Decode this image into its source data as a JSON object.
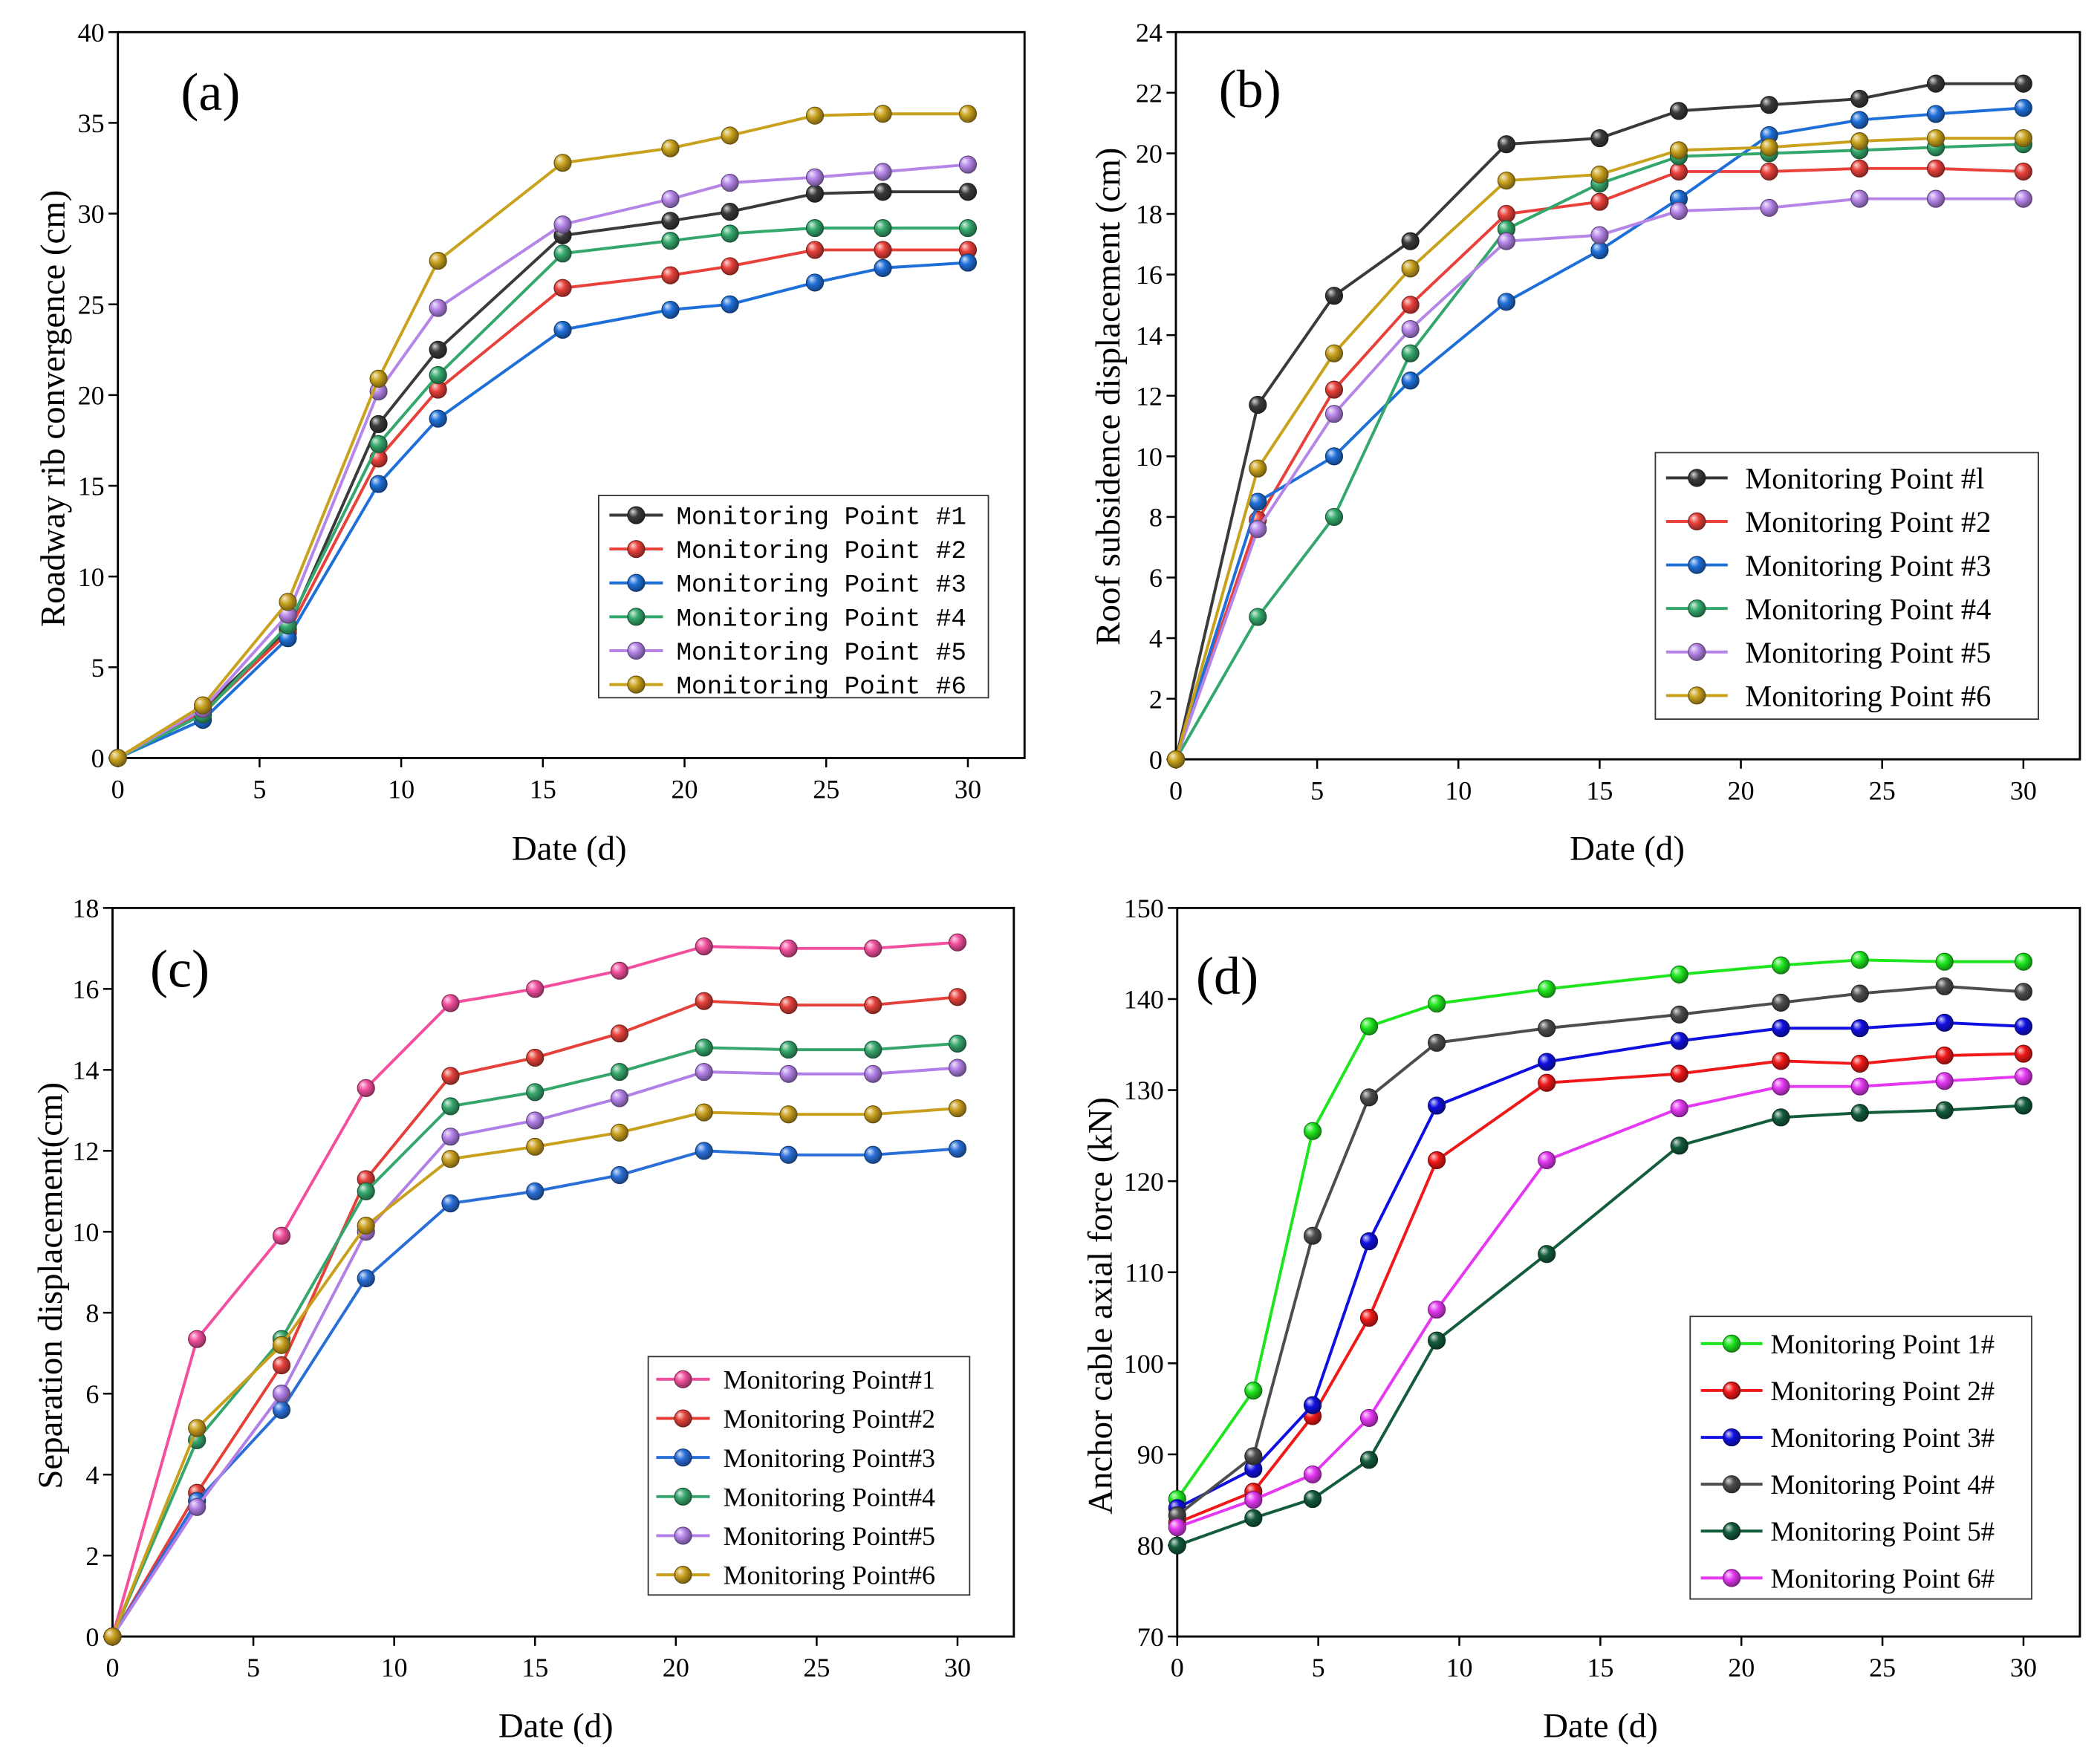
{
  "chart_data": [
    {
      "type": "line",
      "title": "(a)",
      "xlabel": "Date (d)",
      "ylabel": "Roadway rib convergence (cm)",
      "xlim": [
        0,
        32
      ],
      "ylim": [
        0,
        40
      ],
      "x_ticks": [
        0,
        5,
        10,
        15,
        20,
        25,
        30
      ],
      "y_ticks": [
        0,
        5,
        10,
        15,
        20,
        25,
        30,
        35,
        40
      ],
      "grid": false,
      "legend": "center-right",
      "x": [
        0,
        3,
        6,
        9.2,
        11.3,
        15.7,
        19.5,
        21.6,
        24.6,
        27,
        30
      ],
      "series": [
        {
          "name": "Monitoring Point #1",
          "color": "#3a3a3a",
          "values": [
            0,
            2.7,
            7.1,
            18.4,
            22.5,
            28.8,
            29.6,
            30.1,
            31.1,
            31.2,
            31.2
          ]
        },
        {
          "name": "Monitoring Point #2",
          "color": "#e8403a",
          "values": [
            0,
            2.5,
            6.9,
            16.5,
            20.3,
            25.9,
            26.6,
            27.1,
            28.0,
            28.0,
            28.0
          ]
        },
        {
          "name": "Monitoring Point #3",
          "color": "#1f6fd9",
          "values": [
            0,
            2.1,
            6.6,
            15.1,
            18.7,
            23.6,
            24.7,
            25.0,
            26.2,
            27.0,
            27.3
          ]
        },
        {
          "name": "Monitoring Point #4",
          "color": "#34a86c",
          "values": [
            0,
            2.4,
            7.3,
            17.3,
            21.1,
            27.8,
            28.5,
            28.9,
            29.2,
            29.2,
            29.2
          ]
        },
        {
          "name": "Monitoring Point #5",
          "color": "#b585e8",
          "values": [
            0,
            2.7,
            7.9,
            20.2,
            24.8,
            29.4,
            30.8,
            31.7,
            32.0,
            32.3,
            32.7
          ]
        },
        {
          "name": "Monitoring Point #6",
          "color": "#c9a21d",
          "values": [
            0,
            2.9,
            8.6,
            20.9,
            27.4,
            32.8,
            33.6,
            34.3,
            35.4,
            35.5,
            35.5
          ]
        }
      ]
    },
    {
      "type": "line",
      "title": "(b)",
      "xlabel": "Date (d)",
      "ylabel": "Roof subsidence displacement (cm)",
      "xlim": [
        0,
        32
      ],
      "ylim": [
        0,
        24
      ],
      "x_ticks": [
        0,
        5,
        10,
        15,
        20,
        25,
        30
      ],
      "y_ticks": [
        0,
        2,
        4,
        6,
        8,
        10,
        12,
        14,
        16,
        18,
        20,
        22,
        24
      ],
      "grid": false,
      "legend": "lower-right",
      "x": [
        0,
        2.9,
        5.6,
        8.3,
        11.7,
        15,
        17.8,
        21,
        24.2,
        26.9,
        30
      ],
      "series": [
        {
          "name": "Monitoring Point #l",
          "color": "#3a3a3a",
          "values": [
            0,
            11.7,
            15.3,
            17.1,
            20.3,
            20.5,
            21.4,
            21.6,
            21.8,
            22.3,
            22.3
          ]
        },
        {
          "name": "Monitoring Point #2",
          "color": "#e8403a",
          "values": [
            0,
            7.9,
            12.2,
            15.0,
            18.0,
            18.4,
            19.4,
            19.4,
            19.5,
            19.5,
            19.4
          ]
        },
        {
          "name": "Monitoring Point #3",
          "color": "#1f6fd9",
          "values": [
            0,
            8.5,
            10.0,
            12.5,
            15.1,
            16.8,
            18.5,
            20.6,
            21.1,
            21.3,
            21.5
          ]
        },
        {
          "name": "Monitoring Point #4",
          "color": "#34a86c",
          "values": [
            0,
            4.7,
            8.0,
            13.4,
            17.5,
            19.0,
            19.9,
            20.0,
            20.1,
            20.2,
            20.3
          ]
        },
        {
          "name": "Monitoring Point #5",
          "color": "#b585e8",
          "values": [
            0,
            7.6,
            11.4,
            14.2,
            17.1,
            17.3,
            18.1,
            18.2,
            18.5,
            18.5,
            18.5
          ]
        },
        {
          "name": "Monitoring Point #6",
          "color": "#c9a21d",
          "values": [
            0,
            9.6,
            13.4,
            16.2,
            19.1,
            19.3,
            20.1,
            20.2,
            20.4,
            20.5,
            20.5
          ]
        }
      ]
    },
    {
      "type": "line",
      "title": "(c)",
      "xlabel": "Date (d)",
      "ylabel": "Separation displacement(cm)",
      "xlim": [
        0,
        32
      ],
      "ylim": [
        0,
        18
      ],
      "x_ticks": [
        0,
        5,
        10,
        15,
        20,
        25,
        30
      ],
      "y_ticks": [
        0,
        2,
        4,
        6,
        8,
        10,
        12,
        14,
        16,
        18
      ],
      "grid": false,
      "legend": "lower-right",
      "x": [
        0,
        3,
        6,
        9,
        12,
        15,
        18,
        21,
        24,
        27,
        30
      ],
      "series": [
        {
          "name": "Monitoring Point#1",
          "color": "#f2509e",
          "values": [
            0,
            7.35,
            9.9,
            13.55,
            15.65,
            16.0,
            16.45,
            17.05,
            17.0,
            17.0,
            17.15
          ]
        },
        {
          "name": "Monitoring Point#2",
          "color": "#e5413b",
          "values": [
            0,
            3.55,
            6.7,
            11.3,
            13.85,
            14.3,
            14.9,
            15.7,
            15.6,
            15.6,
            15.8
          ]
        },
        {
          "name": "Monitoring Point#3",
          "color": "#2a6fd8",
          "values": [
            0,
            3.35,
            5.6,
            8.85,
            10.7,
            11.0,
            11.4,
            12.0,
            11.9,
            11.9,
            12.05
          ]
        },
        {
          "name": "Monitoring Point#4",
          "color": "#36a66c",
          "values": [
            0,
            4.85,
            7.35,
            11.0,
            13.1,
            13.45,
            13.95,
            14.55,
            14.5,
            14.5,
            14.65
          ]
        },
        {
          "name": "Monitoring Point#5",
          "color": "#b180e6",
          "values": [
            0,
            3.2,
            6.0,
            10.0,
            12.35,
            12.75,
            13.3,
            13.95,
            13.9,
            13.9,
            14.05
          ]
        },
        {
          "name": "Monitoring Point#6",
          "color": "#c99f1e",
          "values": [
            0,
            5.15,
            7.2,
            10.15,
            11.8,
            12.1,
            12.45,
            12.95,
            12.9,
            12.9,
            13.05
          ]
        }
      ]
    },
    {
      "type": "line",
      "title": "(d)",
      "xlabel": "Date (d)",
      "ylabel": "Anchor cable axial force (kN)",
      "xlim": [
        0,
        32
      ],
      "ylim": [
        70,
        150
      ],
      "x_ticks": [
        0,
        5,
        10,
        15,
        20,
        25,
        30
      ],
      "y_ticks": [
        70,
        80,
        90,
        100,
        110,
        120,
        130,
        140,
        150
      ],
      "grid": false,
      "legend": "lower-right",
      "x": [
        0,
        2.7,
        4.8,
        6.8,
        9.2,
        13.1,
        17.8,
        21.4,
        24.2,
        27.2,
        30
      ],
      "series": [
        {
          "name": "Monitoring Point 1#",
          "color": "#1ee61e",
          "values": [
            85.1,
            97.0,
            125.5,
            137.0,
            139.5,
            141.1,
            142.7,
            143.7,
            144.3,
            144.1,
            144.1
          ]
        },
        {
          "name": "Monitoring Point 2#",
          "color": "#f01818",
          "values": [
            82.5,
            85.9,
            94.2,
            105.0,
            122.3,
            130.8,
            131.8,
            133.2,
            132.9,
            133.8,
            134.0
          ]
        },
        {
          "name": "Monitoring Point 3#",
          "color": "#1010e0",
          "values": [
            84.1,
            88.4,
            95.4,
            113.4,
            128.3,
            133.1,
            135.4,
            136.8,
            136.8,
            137.4,
            137.0
          ]
        },
        {
          "name": "Monitoring Point 4#",
          "color": "#4d4d4d",
          "values": [
            83.3,
            89.8,
            114.0,
            129.2,
            135.2,
            136.8,
            138.3,
            139.6,
            140.6,
            141.4,
            140.8
          ]
        },
        {
          "name": "Monitoring Point 5#",
          "color": "#135c3c",
          "values": [
            80.0,
            83.0,
            85.1,
            89.4,
            102.5,
            112.0,
            123.9,
            127.0,
            127.5,
            127.8,
            128.3
          ]
        },
        {
          "name": "Monitoring Point 6#",
          "color": "#e438f2",
          "values": [
            82.0,
            85.0,
            87.8,
            94.0,
            105.9,
            122.3,
            128.0,
            130.4,
            130.4,
            131.0,
            131.5
          ]
        }
      ]
    }
  ]
}
